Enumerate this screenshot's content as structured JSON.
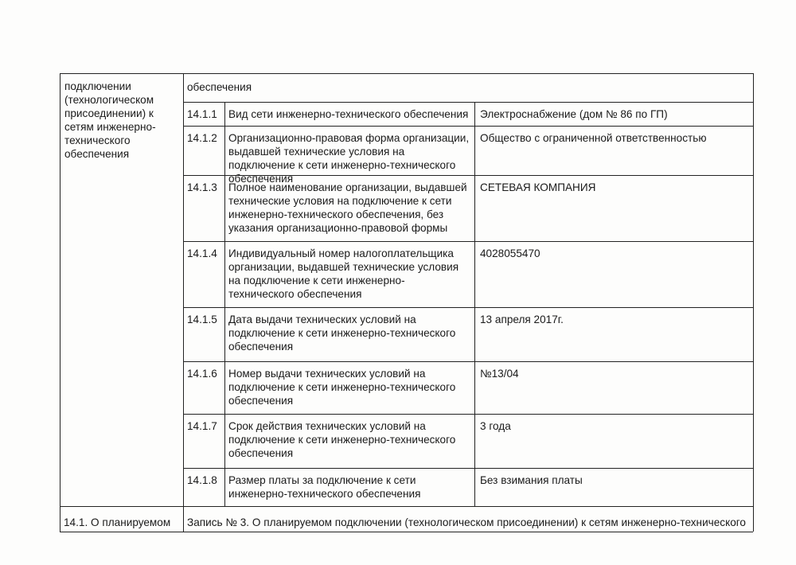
{
  "table": {
    "left_cell": "подключении (технологическом присоединении) к сетям инженерно-технического обеспечения",
    "continued_heading": "обеспечения",
    "rows": [
      {
        "number": "14.1.1",
        "label": "Вид сети инженерно-технического обеспечения",
        "value": "Электроснабжение (дом № 86 по ГП)"
      },
      {
        "number": "14.1.2",
        "label": "Организационно-правовая форма организации, выдавшей технические условия на подключение к сети инженерно-технического обеспечения",
        "value": "Общество с ограниченной ответственностью"
      },
      {
        "number": "14.1.3",
        "label": "Полное наименование организации, выдавшей технические условия на подключение к сети инженерно-технического обеспечения, без указания организационно-правовой формы",
        "value": "СЕТЕВАЯ КОМПАНИЯ"
      },
      {
        "number": "14.1.4",
        "label": "Индивидуальный номер налогоплательщика организации, выдавшей технические условия на подключение к сети инженерно-технического обеспечения",
        "value": "4028055470"
      },
      {
        "number": "14.1.5",
        "label": "Дата выдачи технических условий на подключение к сети инженерно-технического обеспечения",
        "value": "13 апреля 2017г."
      },
      {
        "number": "14.1.6",
        "label": "Номер выдачи технических условий на подключение к сети инженерно-технического обеспечения",
        "value": "№13/04"
      },
      {
        "number": "14.1.7",
        "label": "Срок действия технических условий на подключение к сети инженерно-технического обеспечения",
        "value": "3 года"
      },
      {
        "number": "14.1.8",
        "label": "Размер платы за подключение к сети инженерно-технического обеспечения",
        "value": "Без взимания платы"
      }
    ],
    "footer": {
      "left": "14.1. О планируемом",
      "right": "Запись № 3. О планируемом подключении (технологическом присоединении) к сетям инженерно-технического"
    }
  }
}
